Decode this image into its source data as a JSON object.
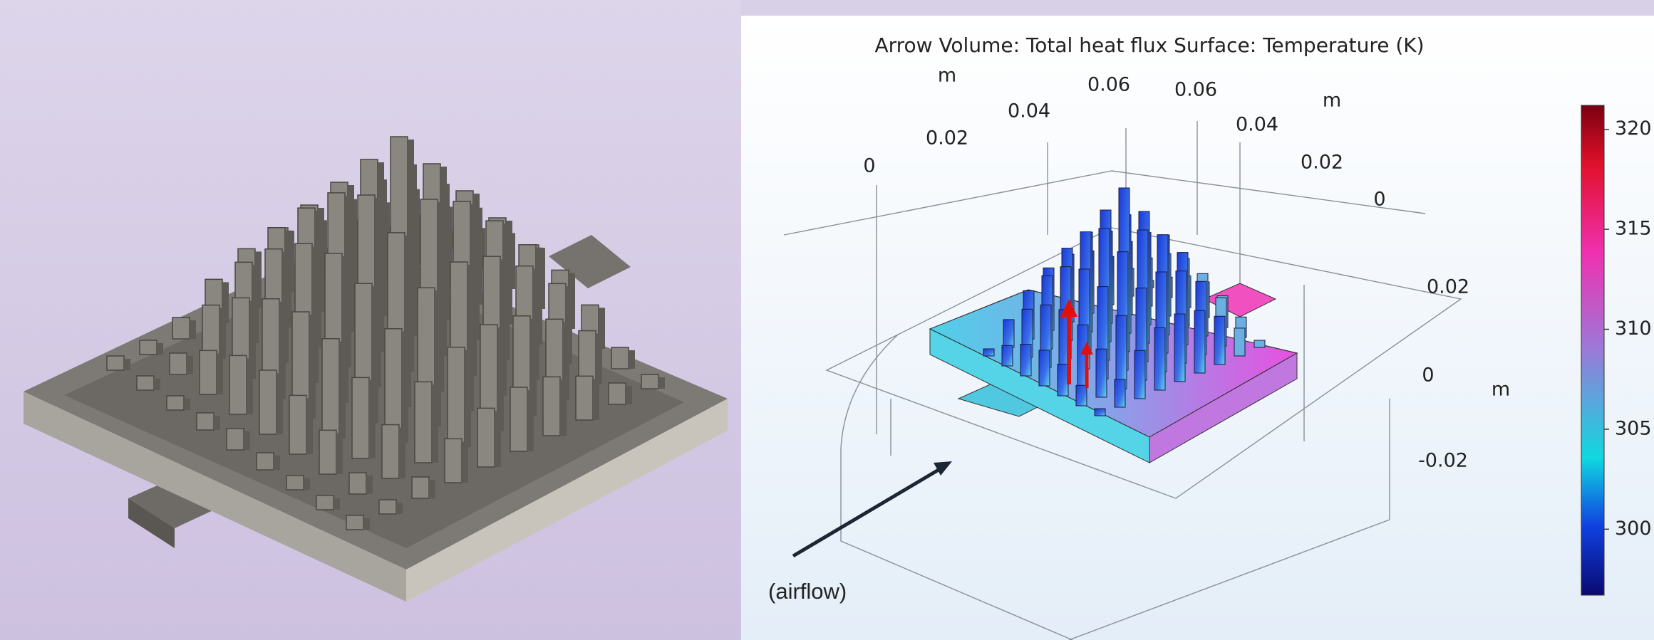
{
  "plot": {
    "title": "Arrow Volume: Total heat flux  Surface: Temperature (K)",
    "axes": {
      "x": {
        "label": "m",
        "ticks": [
          "0",
          "0.02",
          "0.04",
          "0.06"
        ]
      },
      "y": {
        "label": "m",
        "ticks": [
          "0.06",
          "0.04",
          "0.02",
          "0"
        ]
      },
      "z": {
        "label": "m",
        "ticks": [
          "0.02",
          "0",
          "-0.02"
        ]
      }
    },
    "colorbar": {
      "range": [
        296.7,
        321.2
      ],
      "ticks": [
        300,
        305,
        310,
        315,
        320
      ]
    },
    "annotation": "(airflow)"
  }
}
